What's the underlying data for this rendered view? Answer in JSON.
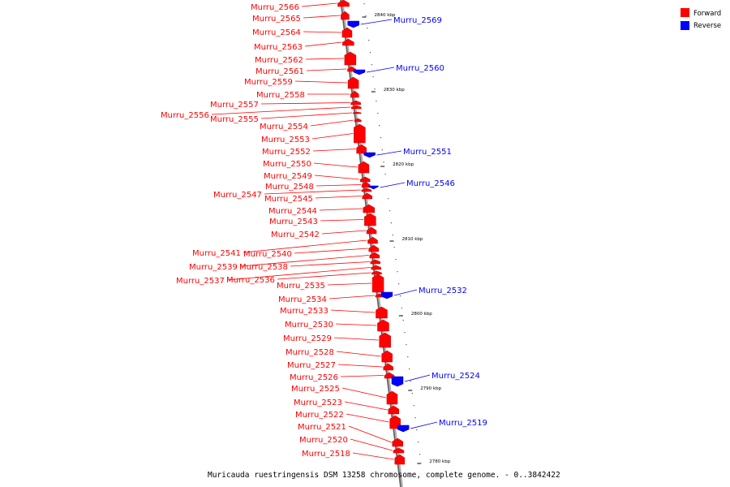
{
  "legend": {
    "forward_label": "Forward",
    "reverse_label": "Reverse",
    "forward_color": "#ff0000",
    "reverse_color": "#0000ff"
  },
  "caption": "Muricauda ruestringensis DSM 13258 chromosome, complete genome. - 0..3842422",
  "ticks": [
    "2840 kbp",
    "2830 kbp",
    "2820 kbp",
    "2810 kbp",
    "2800 kbp",
    "2790 kbp",
    "2780 kbp"
  ],
  "forward_genes": [
    "Murru_2566",
    "Murru_2565",
    "Murru_2564",
    "Murru_2563",
    "Murru_2562",
    "Murru_2561",
    "Murru_2559",
    "Murru_2558",
    "Murru_2557",
    "Murru_2556",
    "Murru_2555",
    "Murru_2554",
    "Murru_2553",
    "Murru_2552",
    "Murru_2550",
    "Murru_2549",
    "Murru_2548",
    "Murru_2547",
    "Murru_2545",
    "Murru_2544",
    "Murru_2543",
    "Murru_2542",
    "Murru_2541",
    "Murru_2540",
    "Murru_2539",
    "Murru_2538",
    "Murru_2537",
    "Murru_2536",
    "Murru_2535",
    "Murru_2534",
    "Murru_2533",
    "Murru_2530",
    "Murru_2529",
    "Murru_2528",
    "Murru_2527",
    "Murru_2526",
    "Murru_2525",
    "Murru_2523",
    "Murru_2522",
    "Murru_2521",
    "Murru_2520",
    "Murru_2518"
  ],
  "reverse_genes": [
    "Murru_2569",
    "Murru_2560",
    "Murru_2551",
    "Murru_2546",
    "Murru_2532",
    "Murru_2524",
    "Murru_2519"
  ]
}
